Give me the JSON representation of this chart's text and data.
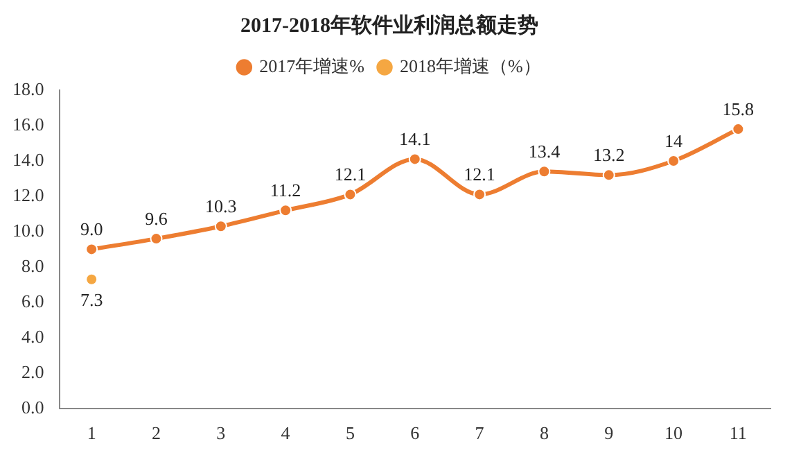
{
  "chart_data": {
    "type": "line",
    "title": "2017-2018年软件业利润总额走势",
    "categories": [
      "1",
      "2",
      "3",
      "4",
      "5",
      "6",
      "7",
      "8",
      "9",
      "10",
      "11"
    ],
    "series": [
      {
        "name": "2017年增速%",
        "color": "#ed7d31",
        "values": [
          9.0,
          9.6,
          10.3,
          11.2,
          12.1,
          14.1,
          12.1,
          13.4,
          13.2,
          14,
          15.8
        ],
        "value_labels": [
          "9.0",
          "9.6",
          "10.3",
          "11.2",
          "12.1",
          "14.1",
          "12.1",
          "13.4",
          "13.2",
          "14",
          "15.8"
        ]
      },
      {
        "name": "2018年增速（%）",
        "color": "#f5a742",
        "values": [
          7.3,
          null,
          null,
          null,
          null,
          null,
          null,
          null,
          null,
          null,
          null
        ],
        "value_labels": [
          "7.3",
          null,
          null,
          null,
          null,
          null,
          null,
          null,
          null,
          null,
          null
        ]
      }
    ],
    "ylim": [
      0,
      18
    ],
    "yticks": [
      {
        "value": 0,
        "label": "0.0"
      },
      {
        "value": 2,
        "label": "2.0"
      },
      {
        "value": 4,
        "label": "4.0"
      },
      {
        "value": 6,
        "label": "6.0"
      },
      {
        "value": 8,
        "label": "8.0"
      },
      {
        "value": 10,
        "label": "10.0"
      },
      {
        "value": 12,
        "label": "12.0"
      },
      {
        "value": 14,
        "label": "14.0"
      },
      {
        "value": 16,
        "label": "16.0"
      },
      {
        "value": 18,
        "label": "18.0"
      }
    ],
    "legend": "top",
    "grid": false,
    "marker": "circle",
    "line_style": "solid"
  }
}
